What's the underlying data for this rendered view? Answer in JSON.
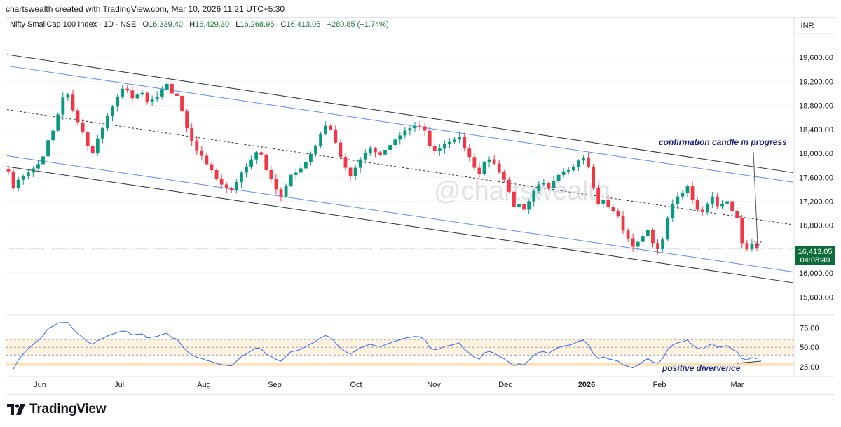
{
  "header": {
    "creator": "chartswealth created with TradingView.com, Mar 10, 2026 11:21 UTC+5:30"
  },
  "symbol": {
    "name": "Nifty SmallCap 100 Index · 1D · NSE",
    "o_label": "O",
    "o": "16,339.40",
    "h_label": "H",
    "h": "16,429.30",
    "l_label": "L",
    "l": "16,268.95",
    "c_label": "C",
    "c": "16,413.05",
    "change": "+280.85 (+1.74%)"
  },
  "currency": "INR",
  "watermark": "@chartswealth",
  "footer": {
    "brand": "TradingView"
  },
  "chart_data": [
    {
      "type": "candlestick",
      "x_ticks": [
        "Jun",
        "Jul",
        "Aug",
        "Sep",
        "Oct",
        "Nov",
        "Dec",
        "2026",
        "Feb",
        "Mar"
      ],
      "y_ticks": [
        19600,
        19200,
        18800,
        18400,
        18000,
        17600,
        17200,
        16800,
        16400,
        16000,
        15600
      ],
      "y_tick_labels": [
        "19,600.00",
        "19,200.00",
        "18,800.00",
        "18,400.00",
        "18,000.00",
        "17,600.00",
        "17,200.00",
        "16,800.00",
        "16,400.00",
        "16,000.00",
        "15,600.00"
      ],
      "ylim": [
        15300,
        20000
      ],
      "last_price": 16413.05,
      "last_price_label": "16,413.05",
      "countdown": "04:08:49",
      "colors": {
        "up": "#089981",
        "down": "#f23645",
        "up_wick": "#089981",
        "down_wick": "#f23645"
      },
      "closes": [
        17700,
        17420,
        17560,
        17620,
        17680,
        17750,
        17820,
        17950,
        18220,
        18380,
        18650,
        18930,
        18980,
        18720,
        18520,
        18350,
        18120,
        18000,
        18250,
        18420,
        18620,
        18780,
        18950,
        19080,
        19050,
        18920,
        18980,
        19010,
        18860,
        18900,
        18950,
        19070,
        19160,
        19000,
        18960,
        18700,
        18420,
        18210,
        18050,
        17960,
        17820,
        17720,
        17580,
        17480,
        17420,
        17380,
        17520,
        17680,
        17780,
        17900,
        18020,
        17980,
        17720,
        17580,
        17400,
        17280,
        17460,
        17640,
        17680,
        17750,
        17860,
        17990,
        18120,
        18330,
        18460,
        18400,
        18180,
        17940,
        17760,
        17620,
        17760,
        17900,
        18000,
        18080,
        18020,
        17980,
        18060,
        18140,
        18230,
        18300,
        18380,
        18420,
        18460,
        18450,
        18380,
        18120,
        18040,
        18080,
        18160,
        18190,
        18230,
        18280,
        18080,
        17940,
        17760,
        17660,
        17850,
        17900,
        17830,
        17690,
        17560,
        17360,
        17100,
        17160,
        17060,
        17200,
        17370,
        17480,
        17500,
        17420,
        17540,
        17640,
        17700,
        17720,
        17780,
        17880,
        17920,
        17780,
        17430,
        17160,
        17220,
        17100,
        17040,
        16960,
        16710,
        16580,
        16440,
        16520,
        16620,
        16720,
        16500,
        16400,
        16560,
        16920,
        17150,
        17280,
        17340,
        17450,
        17220,
        17060,
        17020,
        17160,
        17280,
        17120,
        17160,
        17200,
        17040,
        16920,
        16500,
        16400,
        16490,
        16413.05
      ],
      "regression_channel": {
        "outer_upper": {
          "start": 19650,
          "end": 17680
        },
        "inner_upper": {
          "start": 19460,
          "end": 17520
        },
        "midline": {
          "start": 18730,
          "end": 16810
        },
        "inner_lower": {
          "start": 17960,
          "end": 16020
        },
        "outer_lower": {
          "start": 17780,
          "end": 15840
        }
      },
      "annotations": [
        {
          "text": "confirmation candle in progress"
        }
      ]
    },
    {
      "type": "line",
      "name": "RSI",
      "y_ticks": [
        75,
        50,
        25
      ],
      "y_tick_labels": [
        "75.00",
        "50.00",
        "25.00"
      ],
      "ylim": [
        14,
        90
      ],
      "bands": {
        "upper": 60,
        "lower": 40,
        "fill": "#fff3e0",
        "highlight_low": [
          26,
          30
        ]
      },
      "line_color": "#2962ff",
      "annotations": [
        {
          "text": "positive divervence"
        }
      ]
    }
  ]
}
